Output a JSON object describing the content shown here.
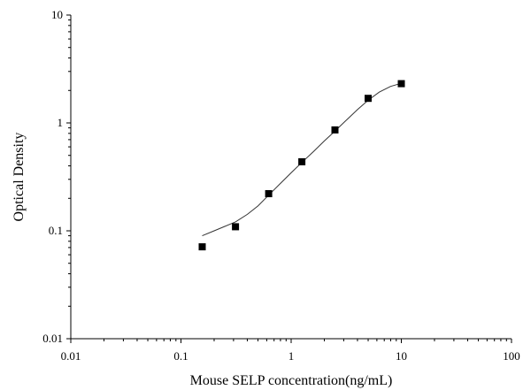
{
  "chart_data": {
    "type": "scatter",
    "title": "",
    "xlabel": "Mouse SELP concentration(ng/mL)",
    "ylabel": "Optical Density",
    "xscale": "log",
    "yscale": "log",
    "xlim": [
      0.01,
      100
    ],
    "ylim": [
      0.01,
      10
    ],
    "x_ticks": [
      {
        "value": 0.01,
        "label": "0.01"
      },
      {
        "value": 0.1,
        "label": "0.1"
      },
      {
        "value": 1,
        "label": "1"
      },
      {
        "value": 10,
        "label": "10"
      },
      {
        "value": 100,
        "label": "100"
      }
    ],
    "y_ticks": [
      {
        "value": 0.01,
        "label": "0.01"
      },
      {
        "value": 0.1,
        "label": "0.1"
      },
      {
        "value": 1,
        "label": "1"
      },
      {
        "value": 10,
        "label": "10"
      }
    ],
    "grid": false,
    "legend": "none",
    "series": [
      {
        "marker": "square",
        "color": "#000000",
        "points": [
          {
            "x": 0.156,
            "y": 0.071
          },
          {
            "x": 0.3125,
            "y": 0.109
          },
          {
            "x": 0.625,
            "y": 0.221
          },
          {
            "x": 1.25,
            "y": 0.437
          },
          {
            "x": 2.5,
            "y": 0.862
          },
          {
            "x": 5,
            "y": 1.69
          },
          {
            "x": 10,
            "y": 2.31
          }
        ]
      }
    ],
    "fit_curve": {
      "x": [
        0.156,
        0.2,
        0.25,
        0.3125,
        0.4,
        0.5,
        0.625,
        0.8,
        1,
        1.25,
        1.6,
        2,
        2.5,
        3.2,
        4,
        5,
        6.3,
        8,
        10
      ],
      "y": [
        0.09,
        0.1,
        0.11,
        0.121,
        0.142,
        0.17,
        0.214,
        0.275,
        0.345,
        0.43,
        0.545,
        0.68,
        0.84,
        1.07,
        1.33,
        1.62,
        1.93,
        2.18,
        2.33
      ],
      "color": "#333333"
    }
  }
}
